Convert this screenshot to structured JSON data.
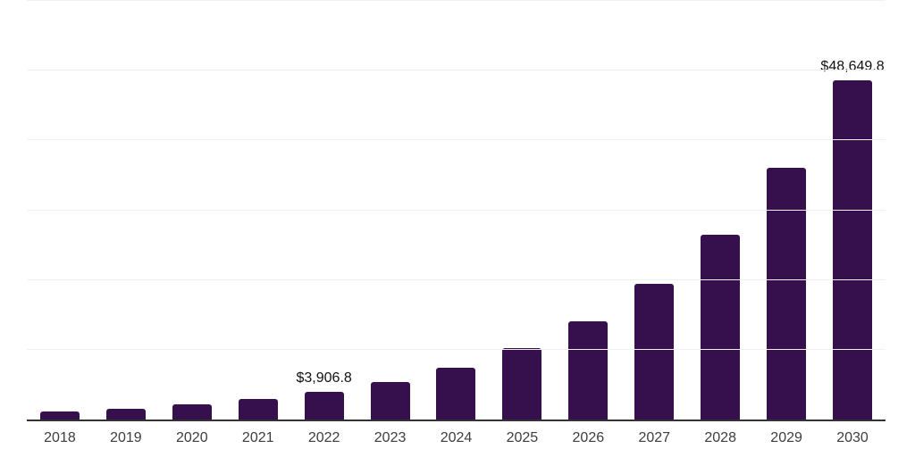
{
  "chart_data": {
    "type": "bar",
    "title": "",
    "xlabel": "",
    "ylabel": "",
    "categories": [
      "2018",
      "2019",
      "2020",
      "2021",
      "2022",
      "2023",
      "2024",
      "2025",
      "2026",
      "2027",
      "2028",
      "2029",
      "2030"
    ],
    "values": [
      1200,
      1480,
      2200,
      2900,
      3906.8,
      5350,
      7450,
      10300,
      14100,
      19400,
      26500,
      36100,
      48649.8
    ],
    "value_labels": [
      "",
      "",
      "",
      "",
      "$3,906.8",
      "",
      "",
      "",
      "",
      "",
      "",
      "",
      "$48,649.8"
    ],
    "ylim": [
      0,
      60000
    ],
    "gridline_interval": 10000,
    "grid": "horizontal",
    "legend_position": "none",
    "bar_color": "#36104d",
    "gridline_color": "#f0f0f0",
    "axis_line_color": "#333333",
    "tick_label_color": "#3d3d3d",
    "data_label_color": "#111111",
    "background_color": "#ffffff"
  }
}
